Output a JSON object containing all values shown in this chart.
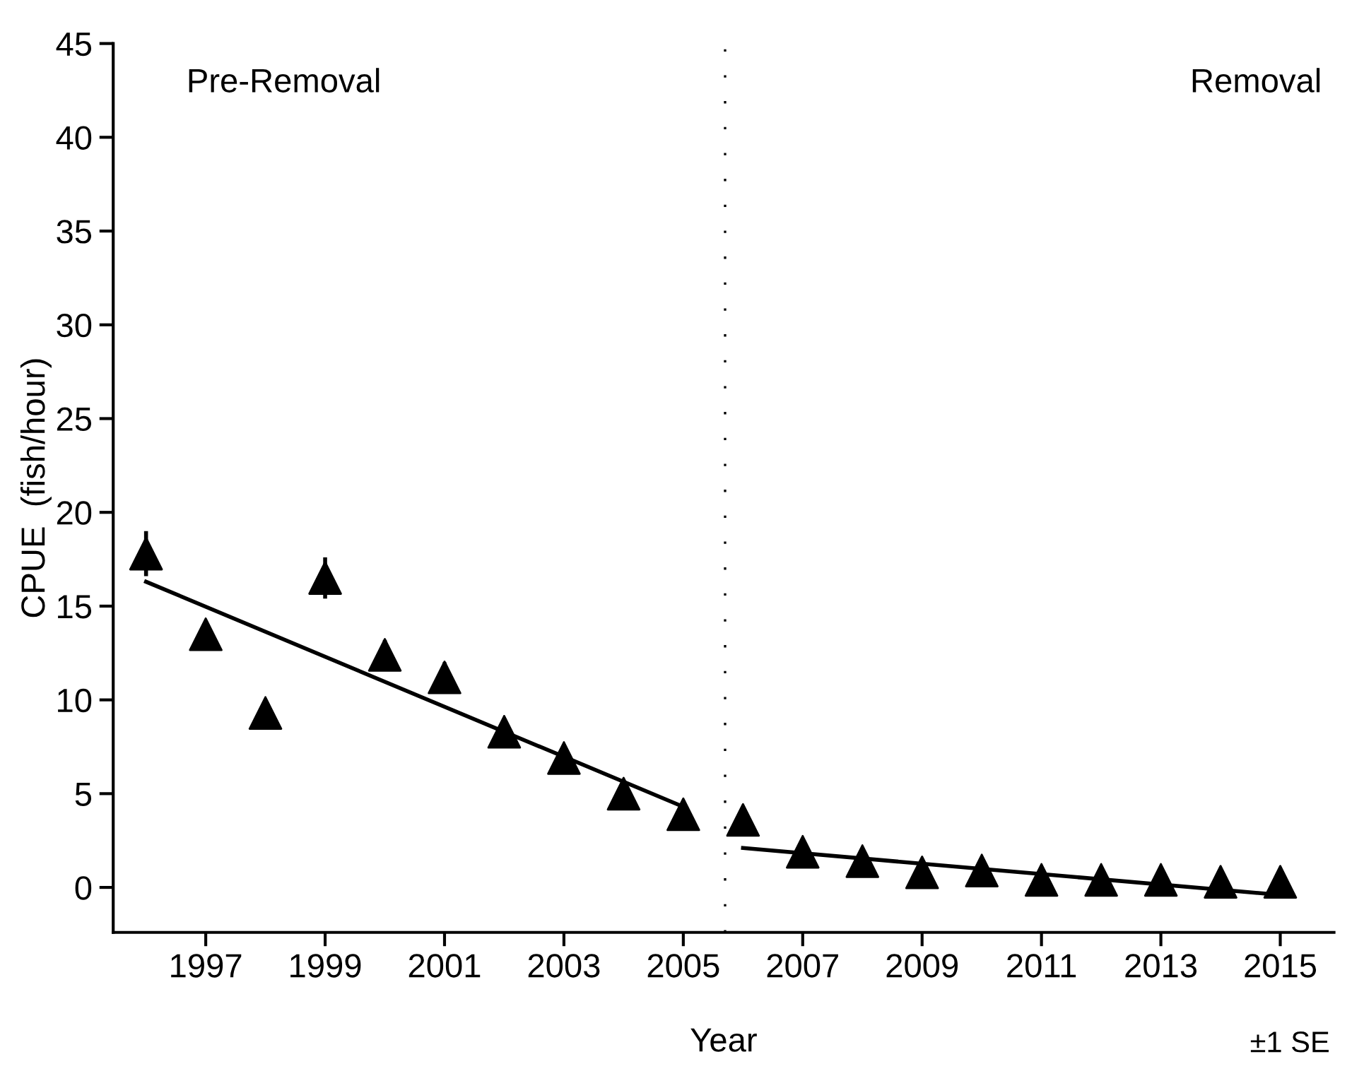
{
  "chart_data": {
    "type": "scatter",
    "xlabel": "Year",
    "ylabel": "CPUE  (fish/hour)",
    "xlim": [
      1995.45,
      2015.9
    ],
    "ylim": [
      -2.4,
      45
    ],
    "xticks": [
      1997,
      1999,
      2001,
      2003,
      2005,
      2007,
      2009,
      2011,
      2013,
      2015
    ],
    "yticks": [
      0,
      5,
      10,
      15,
      20,
      25,
      30,
      35,
      40,
      45
    ],
    "grid": false,
    "legend": false,
    "annotations": [
      "Pre-Removal",
      "Removal",
      "±1 SE"
    ],
    "ref_lines": [
      {
        "axis": "x",
        "value": 2005.7,
        "line_style": "dotted",
        "color": "#000000"
      }
    ],
    "series": [
      {
        "marker": "triangle",
        "color": "#000000",
        "x": [
          1996,
          1997,
          1998,
          1999,
          2000,
          2001,
          2002,
          2003,
          2004,
          2005,
          2006,
          2007,
          2008,
          2009,
          2010,
          2011,
          2012,
          2013,
          2014,
          2015
        ],
        "values": [
          17.8,
          13.5,
          9.3,
          16.5,
          12.4,
          11.2,
          8.3,
          6.9,
          5.0,
          3.9,
          3.6,
          1.9,
          1.4,
          0.8,
          0.9,
          0.4,
          0.4,
          0.4,
          0.3,
          0.3
        ],
        "errors": [
          1.2,
          0.6,
          0.7,
          1.1,
          0.8,
          0.8,
          0.5,
          0.5,
          null,
          0.4,
          null,
          null,
          null,
          null,
          null,
          null,
          null,
          null,
          null,
          null
        ]
      },
      {
        "type": "line",
        "line_style": "solid",
        "color": "#000000",
        "x": [
          1996,
          2005
        ],
        "values": [
          16.3,
          4.3
        ]
      },
      {
        "type": "line",
        "line_style": "solid",
        "color": "#000000",
        "x": [
          2006,
          2015
        ],
        "values": [
          2.1,
          -0.4
        ]
      }
    ]
  }
}
